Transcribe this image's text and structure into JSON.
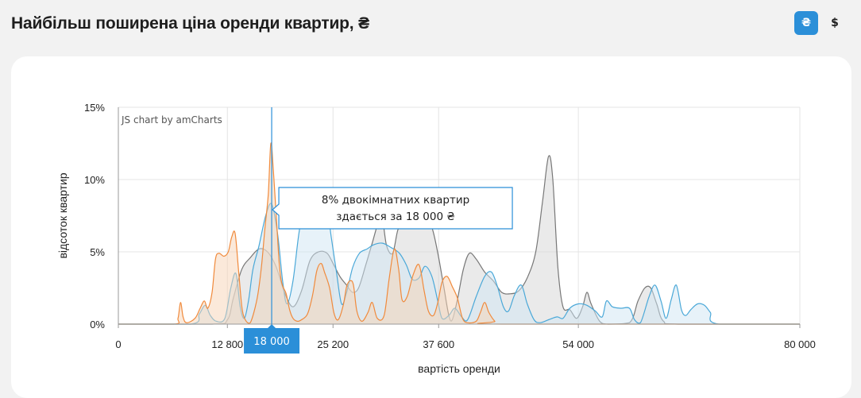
{
  "header": {
    "title": "Найбільш поширена ціна оренди квартир, ₴",
    "currency_options": [
      {
        "label": "₴",
        "active": true
      },
      {
        "label": "$",
        "active": false
      }
    ]
  },
  "chart_data": {
    "type": "area",
    "credit": "JS chart by amCharts",
    "xlabel": "вартість оренди",
    "ylabel": "відсоток квартир",
    "xlim": [
      0,
      80000
    ],
    "ylim": [
      0,
      15
    ],
    "x_ticks": [
      {
        "value": 0,
        "label": "0"
      },
      {
        "value": 12800,
        "label": "12 800"
      },
      {
        "value": 25200,
        "label": "25 200"
      },
      {
        "value": 37600,
        "label": "37 600"
      },
      {
        "value": 54000,
        "label": "54 000"
      },
      {
        "value": 80000,
        "label": "80 000"
      }
    ],
    "y_ticks": [
      {
        "value": 0,
        "label": "0%"
      },
      {
        "value": 5,
        "label": "5%"
      },
      {
        "value": 10,
        "label": "10%"
      },
      {
        "value": 15,
        "label": "15%"
      }
    ],
    "grid": true,
    "series": [
      {
        "color": "#777777",
        "fill": "#d6d6d6",
        "points": [
          [
            0,
            0
          ],
          [
            11000,
            0
          ],
          [
            12800,
            0.3
          ],
          [
            13500,
            1.8
          ],
          [
            14500,
            3.8
          ],
          [
            15500,
            4.6
          ],
          [
            16500,
            5.2
          ],
          [
            17500,
            5.0
          ],
          [
            18500,
            4.0
          ],
          [
            19500,
            2.2
          ],
          [
            20500,
            1.2
          ],
          [
            21500,
            2.3
          ],
          [
            22500,
            4.4
          ],
          [
            23500,
            5.0
          ],
          [
            24500,
            4.9
          ],
          [
            25200,
            4.2
          ],
          [
            26000,
            3.3
          ],
          [
            26800,
            2.7
          ],
          [
            27500,
            2.2
          ],
          [
            28200,
            2.5
          ],
          [
            29000,
            4.0
          ],
          [
            29800,
            5.6
          ],
          [
            30500,
            7.0
          ],
          [
            31000,
            7.2
          ],
          [
            31500,
            5.4
          ],
          [
            32200,
            4.9
          ],
          [
            32800,
            6.5
          ],
          [
            33500,
            7.3
          ],
          [
            34000,
            8.7
          ],
          [
            34800,
            9.3
          ],
          [
            35500,
            8.9
          ],
          [
            36200,
            7.8
          ],
          [
            37000,
            6.3
          ],
          [
            37600,
            4.6
          ],
          [
            38200,
            2.6
          ],
          [
            38800,
            0.6
          ],
          [
            39200,
            0.3
          ],
          [
            39800,
            1.7
          ],
          [
            40500,
            3.8
          ],
          [
            41200,
            4.9
          ],
          [
            42000,
            4.5
          ],
          [
            43000,
            3.6
          ],
          [
            44000,
            3.0
          ],
          [
            45000,
            2.2
          ],
          [
            46000,
            2.1
          ],
          [
            47000,
            2.3
          ],
          [
            48000,
            3.2
          ],
          [
            49000,
            5.0
          ],
          [
            49800,
            8.5
          ],
          [
            50500,
            11.6
          ],
          [
            51000,
            10.0
          ],
          [
            51600,
            3.9
          ],
          [
            52200,
            1.2
          ],
          [
            53000,
            1.0
          ],
          [
            53800,
            0.4
          ],
          [
            54500,
            1.2
          ],
          [
            55000,
            2.2
          ],
          [
            55500,
            1.4
          ],
          [
            56500,
            0.2
          ],
          [
            57500,
            0
          ],
          [
            60000,
            0.1
          ],
          [
            61000,
            1.6
          ],
          [
            61800,
            2.5
          ],
          [
            62500,
            2.5
          ],
          [
            63200,
            1.4
          ],
          [
            64000,
            0.2
          ],
          [
            66000,
            0
          ],
          [
            80000,
            0
          ]
        ]
      },
      {
        "color": "#4aa8d8",
        "fill": "#cfe6f3",
        "points": [
          [
            0,
            0
          ],
          [
            8500,
            0
          ],
          [
            9500,
            0.7
          ],
          [
            10200,
            1.3
          ],
          [
            10800,
            0.6
          ],
          [
            11500,
            0.2
          ],
          [
            12500,
            0.4
          ],
          [
            13200,
            2.5
          ],
          [
            13800,
            3.5
          ],
          [
            14300,
            1.2
          ],
          [
            14800,
            0.4
          ],
          [
            15300,
            1.7
          ],
          [
            15800,
            3.8
          ],
          [
            16500,
            5.4
          ],
          [
            17300,
            7.5
          ],
          [
            18000,
            8.3
          ],
          [
            18700,
            6.2
          ],
          [
            19300,
            2.9
          ],
          [
            19800,
            1.4
          ],
          [
            20500,
            3.0
          ],
          [
            21200,
            6.3
          ],
          [
            21800,
            8.0
          ],
          [
            22500,
            7.2
          ],
          [
            23200,
            6.9
          ],
          [
            23800,
            7.7
          ],
          [
            24500,
            7.9
          ],
          [
            25000,
            6.0
          ],
          [
            25600,
            3.6
          ],
          [
            26200,
            1.4
          ],
          [
            26800,
            2.2
          ],
          [
            27500,
            3.9
          ],
          [
            28300,
            4.9
          ],
          [
            29200,
            5.2
          ],
          [
            30000,
            5.5
          ],
          [
            31000,
            5.6
          ],
          [
            32000,
            5.3
          ],
          [
            33000,
            4.9
          ],
          [
            33800,
            4.1
          ],
          [
            34500,
            3.1
          ],
          [
            35300,
            3.2
          ],
          [
            36000,
            4.0
          ],
          [
            36800,
            3.3
          ],
          [
            37500,
            1.6
          ],
          [
            38000,
            0.4
          ],
          [
            38800,
            0.6
          ],
          [
            39500,
            1.1
          ],
          [
            40300,
            0.5
          ],
          [
            41000,
            0.3
          ],
          [
            42000,
            1.9
          ],
          [
            43000,
            3.3
          ],
          [
            43800,
            3.6
          ],
          [
            44500,
            2.6
          ],
          [
            45200,
            1.2
          ],
          [
            45800,
            0.9
          ],
          [
            46500,
            2.0
          ],
          [
            47300,
            2.7
          ],
          [
            48000,
            1.4
          ],
          [
            48800,
            0.3
          ],
          [
            49500,
            0.1
          ],
          [
            50500,
            0.3
          ],
          [
            51500,
            0.5
          ],
          [
            52200,
            0.4
          ],
          [
            53000,
            1.1
          ],
          [
            54000,
            1.4
          ],
          [
            55000,
            1.3
          ],
          [
            56000,
            0.9
          ],
          [
            56800,
            0.5
          ],
          [
            57300,
            1.6
          ],
          [
            58000,
            1.2
          ],
          [
            59000,
            1.1
          ],
          [
            60000,
            1.1
          ],
          [
            60600,
            0.3
          ],
          [
            61300,
            0.1
          ],
          [
            62300,
            1.9
          ],
          [
            63000,
            2.7
          ],
          [
            63700,
            1.6
          ],
          [
            64300,
            0.4
          ],
          [
            64900,
            1.7
          ],
          [
            65500,
            2.7
          ],
          [
            66100,
            1.0
          ],
          [
            66600,
            0.6
          ],
          [
            67200,
            1.0
          ],
          [
            68000,
            1.4
          ],
          [
            68800,
            1.3
          ],
          [
            69500,
            0.8
          ],
          [
            70500,
            0
          ],
          [
            80000,
            0
          ]
        ]
      },
      {
        "color": "#f08a3c",
        "fill": "#f7d3b6",
        "points": [
          [
            0,
            0
          ],
          [
            6500,
            0
          ],
          [
            7000,
            0.4
          ],
          [
            7300,
            1.5
          ],
          [
            7600,
            0.5
          ],
          [
            8000,
            0.1
          ],
          [
            9000,
            0.4
          ],
          [
            9600,
            1.1
          ],
          [
            10100,
            1.6
          ],
          [
            10500,
            1.1
          ],
          [
            11000,
            2.2
          ],
          [
            11400,
            4.5
          ],
          [
            11800,
            4.9
          ],
          [
            12400,
            4.7
          ],
          [
            12900,
            5.0
          ],
          [
            13300,
            6.0
          ],
          [
            13700,
            6.3
          ],
          [
            14100,
            3.8
          ],
          [
            14500,
            1.2
          ],
          [
            14900,
            0.3
          ],
          [
            15500,
            0.1
          ],
          [
            16300,
            1.8
          ],
          [
            16800,
            4.0
          ],
          [
            17200,
            6.6
          ],
          [
            17600,
            9.0
          ],
          [
            17900,
            12.5
          ],
          [
            18200,
            10.6
          ],
          [
            18600,
            6.9
          ],
          [
            18900,
            4.1
          ],
          [
            19200,
            2.8
          ],
          [
            19700,
            2.1
          ],
          [
            20100,
            1.0
          ],
          [
            20500,
            0.4
          ],
          [
            21000,
            0.2
          ],
          [
            21500,
            0.3
          ],
          [
            22200,
            0.7
          ],
          [
            22800,
            2.0
          ],
          [
            23300,
            3.7
          ],
          [
            23800,
            4.2
          ],
          [
            24200,
            3.6
          ],
          [
            24800,
            2.5
          ],
          [
            25300,
            0.8
          ],
          [
            25800,
            0.3
          ],
          [
            26400,
            1.3
          ],
          [
            26800,
            2.6
          ],
          [
            27200,
            3.0
          ],
          [
            27600,
            2.7
          ],
          [
            28000,
            0.9
          ],
          [
            28600,
            0.2
          ],
          [
            29300,
            0.8
          ],
          [
            29800,
            1.5
          ],
          [
            30400,
            0.4
          ],
          [
            31200,
            0.6
          ],
          [
            31800,
            3.2
          ],
          [
            32400,
            5.2
          ],
          [
            32900,
            3.8
          ],
          [
            33300,
            1.7
          ],
          [
            33900,
            1.9
          ],
          [
            34600,
            3.4
          ],
          [
            35300,
            4.1
          ],
          [
            35900,
            2.3
          ],
          [
            36400,
            0.9
          ],
          [
            37000,
            0.6
          ],
          [
            37500,
            1.5
          ],
          [
            38000,
            2.9
          ],
          [
            38600,
            3.3
          ],
          [
            39200,
            2.6
          ],
          [
            39800,
            1.8
          ],
          [
            40400,
            0.4
          ],
          [
            41000,
            0.1
          ],
          [
            42000,
            0.2
          ],
          [
            42500,
            0.8
          ],
          [
            43000,
            1.5
          ],
          [
            43500,
            0.8
          ],
          [
            44200,
            0.2
          ],
          [
            45000,
            0
          ],
          [
            80000,
            0
          ]
        ]
      }
    ],
    "cursor": {
      "x": 18000,
      "label": "18 000",
      "tooltip_lines": [
        "8% двокімнатних квартир",
        "здається за 18 000 ₴"
      ]
    }
  }
}
